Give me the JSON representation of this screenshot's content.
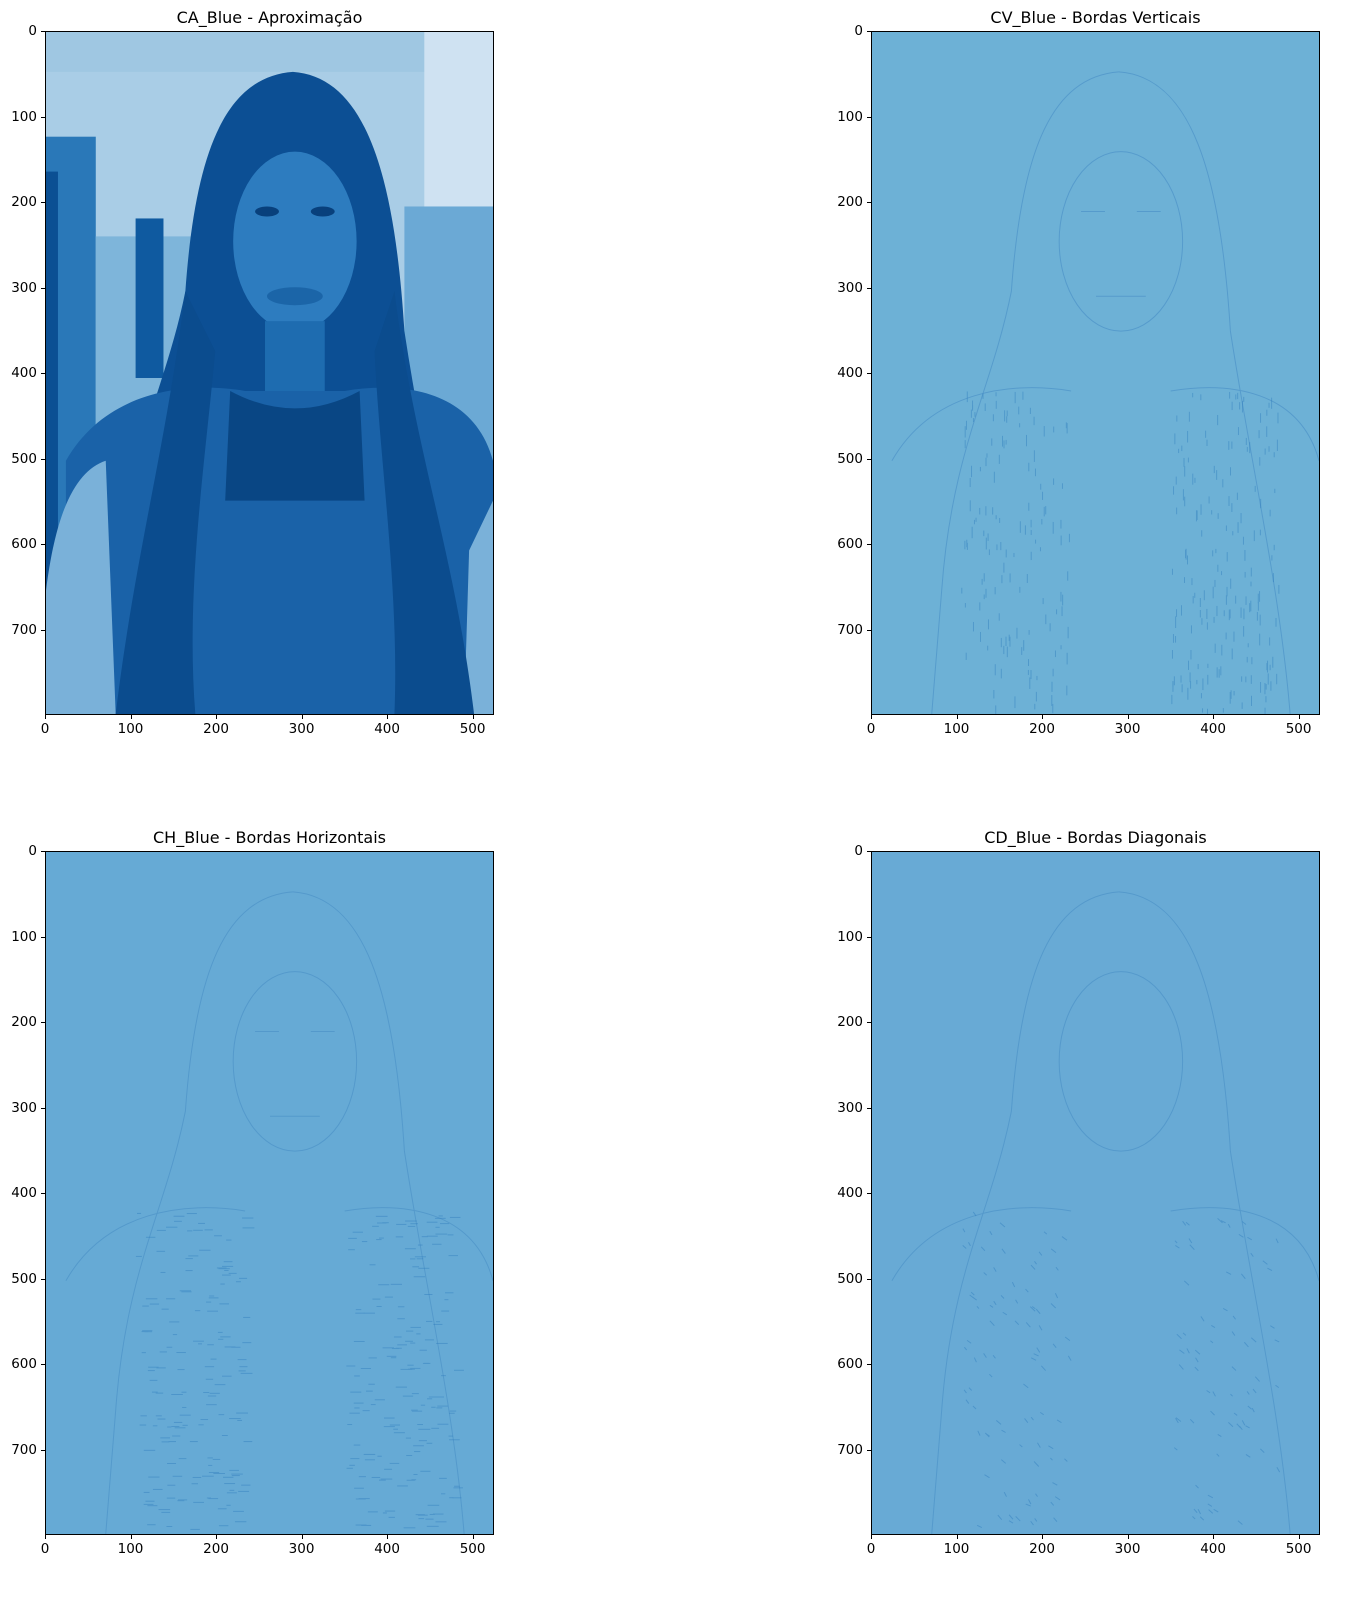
{
  "chart_data": [
    {
      "type": "heatmap",
      "title": "CA_Blue - Aproximação",
      "colormap": "Blues",
      "fill_color": "#1f6db1",
      "xlim": [
        0,
        525
      ],
      "ylim": [
        800,
        0
      ],
      "xticks": [
        0,
        100,
        200,
        300,
        400,
        500
      ],
      "yticks": [
        0,
        100,
        200,
        300,
        400,
        500,
        600,
        700
      ],
      "content": "approximation"
    },
    {
      "type": "heatmap",
      "title": "CV_Blue - Bordas Verticais",
      "colormap": "Blues",
      "fill_color": "#6db1d6",
      "xlim": [
        0,
        525
      ],
      "ylim": [
        800,
        0
      ],
      "xticks": [
        0,
        100,
        200,
        300,
        400,
        500
      ],
      "yticks": [
        0,
        100,
        200,
        300,
        400,
        500,
        600,
        700
      ],
      "content": "vertical"
    },
    {
      "type": "heatmap",
      "title": "CH_Blue - Bordas Horizontais",
      "colormap": "Blues",
      "fill_color": "#66aad5",
      "xlim": [
        0,
        525
      ],
      "ylim": [
        800,
        0
      ],
      "xticks": [
        0,
        100,
        200,
        300,
        400,
        500
      ],
      "yticks": [
        0,
        100,
        200,
        300,
        400,
        500,
        600,
        700
      ],
      "content": "horizontal"
    },
    {
      "type": "heatmap",
      "title": "CD_Blue - Bordas Diagonais",
      "colormap": "Blues",
      "fill_color": "#68aad5",
      "xlim": [
        0,
        525
      ],
      "ylim": [
        800,
        0
      ],
      "xticks": [
        0,
        100,
        200,
        300,
        400,
        500
      ],
      "yticks": [
        0,
        100,
        200,
        300,
        400,
        500,
        600,
        700
      ],
      "content": "diagonal"
    }
  ]
}
